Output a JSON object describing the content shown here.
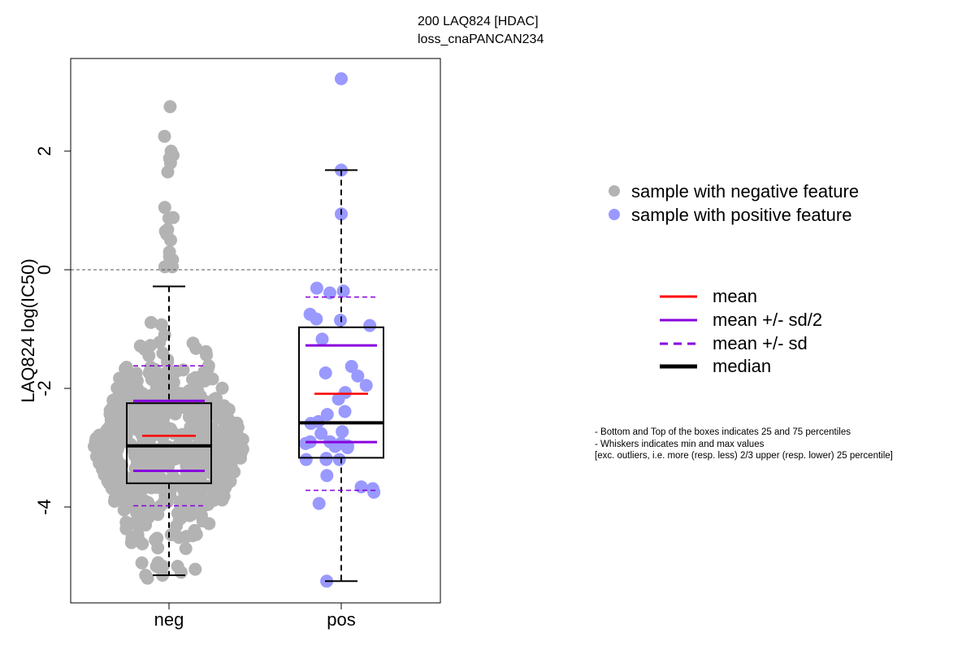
{
  "title": [
    "200 LAQ824 [HDAC]",
    "loss_cnaPANCAN234"
  ],
  "legend_samples": [
    {
      "label": "sample with negative feature",
      "color": "#b3b3b3"
    },
    {
      "label": "sample with positive feature",
      "color": "#9999ff"
    }
  ],
  "legend_lines": [
    {
      "label": "mean",
      "color": "#ff0000",
      "style": "solid"
    },
    {
      "label": "mean +/- sd/2",
      "color": "#8800dd",
      "style": "solid"
    },
    {
      "label": "mean +/- sd",
      "color": "#8800dd",
      "style": "dashed"
    },
    {
      "label": "median",
      "color": "#000000",
      "style": "solid-thick"
    }
  ],
  "notes": [
    "- Bottom and Top of the boxes indicates 25 and 75 percentiles",
    "- Whiskers indicates min and max values",
    "[exc. outliers, i.e. more (resp. less) 2/3 upper (resp. lower) 25 percentile]"
  ],
  "chart_data": {
    "type": "box",
    "title": "200 LAQ824 [HDAC]\nloss_cnaPANCAN234",
    "xlabel": "",
    "ylabel": "LAQ824 log(IC50)",
    "categories": [
      "neg",
      "pos"
    ],
    "yticks": [
      2,
      0,
      -2,
      -4
    ],
    "ylim": [
      -5.5,
      3.5
    ],
    "reference_line": 0,
    "groups": [
      {
        "name": "neg",
        "color": "#b3b3b3",
        "q1": -3.6,
        "median": -2.97,
        "q3": -2.25,
        "mean": -2.8,
        "sd": 1.18,
        "whisker_low": -5.15,
        "whisker_high": -0.28,
        "n_points": 600,
        "highlighted_points": [
          2.75,
          2.25,
          2.0,
          1.93,
          1.88,
          1.8,
          1.65,
          1.05,
          0.88,
          0.87,
          0.68,
          0.65,
          0.6,
          0.5,
          0.3,
          0.22,
          0.17,
          0.05,
          0.05,
          -5.05,
          -5.1,
          -5.15,
          -5.15,
          -5.2
        ]
      },
      {
        "name": "pos",
        "color": "#9999ff",
        "q1": -3.17,
        "median": -2.58,
        "q3": -0.97,
        "mean": -2.09,
        "sd": 1.63,
        "whisker_low": -5.25,
        "whisker_high": 1.68,
        "points": [
          3.22,
          1.68,
          0.94,
          -0.31,
          -0.36,
          -0.39,
          -0.75,
          -0.83,
          -0.85,
          -0.94,
          -1.17,
          -1.63,
          -1.74,
          -1.79,
          -1.95,
          -2.18,
          -2.07,
          -2.39,
          -2.44,
          -2.56,
          -2.59,
          -2.73,
          -2.76,
          -2.9,
          -2.9,
          -2.93,
          -2.93,
          -2.97,
          -3.0,
          -2.98,
          -3.2,
          -3.2,
          -3.2,
          -3.18,
          -3.47,
          -3.66,
          -3.69,
          -3.75,
          -3.94,
          -5.25
        ]
      }
    ]
  }
}
